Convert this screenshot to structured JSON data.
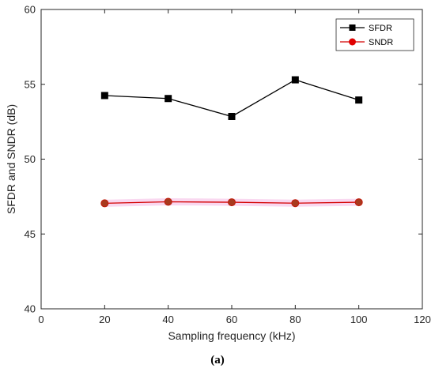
{
  "chart_data": {
    "type": "line",
    "xlabel": "Sampling frequency (kHz)",
    "ylabel": "SFDR and SNDR (dB)",
    "xlim": [
      0,
      120
    ],
    "ylim": [
      40,
      60
    ],
    "xticks": [
      0,
      20,
      40,
      60,
      80,
      100,
      120
    ],
    "yticks": [
      40,
      45,
      50,
      55,
      60
    ],
    "grid": false,
    "legend_position": "top-right",
    "x": [
      20,
      40,
      60,
      80,
      100
    ],
    "series": [
      {
        "name": "SFDR",
        "values": [
          54.25,
          54.05,
          52.85,
          55.3,
          53.95
        ],
        "color": "#000000",
        "marker": "square"
      },
      {
        "name": "SNDR",
        "values": [
          47.05,
          47.15,
          47.12,
          47.06,
          47.12
        ],
        "color": "#d40000",
        "marker": "circle"
      }
    ]
  },
  "caption": "(a)"
}
